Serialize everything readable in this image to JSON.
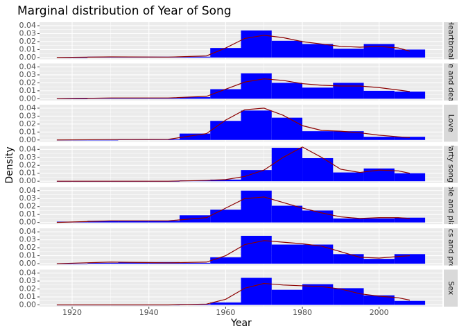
{
  "chart_data": {
    "type": "histogram",
    "title": "Marginal distribution of Year of Song",
    "x_label": "Year",
    "y_label": "Density",
    "xlim": [
      1911.5,
      2016.5
    ],
    "xticks": [
      1920,
      1940,
      1960,
      1980,
      2000
    ],
    "ylim": [
      -0.0022,
      0.0444
    ],
    "yticks": [
      {
        "value": 0,
        "label": "0.00"
      },
      0.01,
      0.02,
      0.03,
      0.04
    ],
    "grid": true,
    "bar_color": "#0000ff",
    "line_color": "#8b0000",
    "bins": [
      1916,
      1924,
      1932,
      1940,
      1948,
      1956,
      1964,
      1972,
      1980,
      1988,
      1996,
      2004,
      2012
    ],
    "density_x": [
      1916,
      1930,
      1945,
      1955,
      1960,
      1965,
      1970,
      1975,
      1980,
      1985,
      1990,
      1995,
      2000,
      2005,
      2008
    ],
    "facets": [
      {
        "name": "Heartbreak",
        "values": [
          0,
          0.001,
          0.001,
          0.001,
          0.001,
          0.012,
          0.034,
          0.021,
          0.017,
          0.011,
          0.017,
          0.01
        ],
        "density": [
          0,
          0.0008,
          0.0005,
          0.002,
          0.012,
          0.024,
          0.028,
          0.025,
          0.02,
          0.017,
          0.014,
          0.013,
          0.014,
          0.012,
          0.008
        ]
      },
      {
        "name": "Life and death",
        "values": [
          0,
          0.001,
          0.001,
          0.001,
          0.002,
          0.012,
          0.032,
          0.02,
          0.014,
          0.02,
          0.01,
          0.009
        ],
        "density": [
          0,
          0.001,
          0.001,
          0.003,
          0.012,
          0.021,
          0.025,
          0.023,
          0.019,
          0.017,
          0.016,
          0.016,
          0.014,
          0.011,
          0.009
        ]
      },
      {
        "name": "Love",
        "values": [
          0,
          0,
          0.001,
          0.001,
          0.008,
          0.024,
          0.037,
          0.028,
          0.011,
          0.011,
          0.004,
          0.004
        ],
        "density": [
          0,
          0.0005,
          0.0008,
          0.008,
          0.025,
          0.038,
          0.04,
          0.031,
          0.018,
          0.012,
          0.011,
          0.009,
          0.006,
          0.004,
          0.003
        ]
      },
      {
        "name": "Party songs",
        "values": [
          0,
          0,
          0,
          0,
          0.001,
          0.002,
          0.014,
          0.042,
          0.029,
          0.011,
          0.016,
          0.01
        ],
        "density": [
          0,
          0,
          0,
          0.001,
          0.002,
          0.006,
          0.014,
          0.03,
          0.043,
          0.03,
          0.015,
          0.011,
          0.014,
          0.013,
          0.01
        ]
      },
      {
        "name": "People and places",
        "values": [
          0.001,
          0.002,
          0.002,
          0.002,
          0.009,
          0.016,
          0.04,
          0.021,
          0.015,
          0.005,
          0.005,
          0.006
        ],
        "density": [
          0,
          0.002,
          0.002,
          0.006,
          0.018,
          0.03,
          0.032,
          0.025,
          0.018,
          0.012,
          0.007,
          0.005,
          0.006,
          0.006,
          0.005
        ]
      },
      {
        "name": "Politics and protest",
        "values": [
          0,
          0.001,
          0.002,
          0.002,
          0.001,
          0.008,
          0.035,
          0.024,
          0.024,
          0.012,
          0.006,
          0.012
        ],
        "density": [
          0,
          0.002,
          0.001,
          0.002,
          0.01,
          0.024,
          0.029,
          0.027,
          0.025,
          0.022,
          0.015,
          0.008,
          0.007,
          0.009,
          0.01
        ]
      },
      {
        "name": "Sex",
        "values": [
          0,
          0,
          0,
          0,
          0.001,
          0.003,
          0.034,
          0.019,
          0.026,
          0.021,
          0.012,
          0.005
        ],
        "density": [
          0,
          0,
          0,
          0.001,
          0.007,
          0.021,
          0.027,
          0.025,
          0.024,
          0.023,
          0.02,
          0.014,
          0.011,
          0.009,
          0.006
        ]
      }
    ]
  }
}
